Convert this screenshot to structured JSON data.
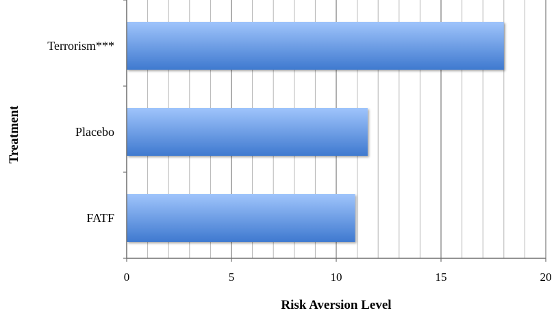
{
  "chart_data": {
    "type": "bar",
    "orientation": "horizontal",
    "categories": [
      "Terrorism***",
      "Placebo",
      "FATF"
    ],
    "values": [
      18,
      11.5,
      10.9
    ],
    "title": "",
    "xlabel": "Risk Aversion Level",
    "ylabel": "Treatment",
    "xlim": [
      0,
      20
    ],
    "x_ticks": [
      "0",
      "5",
      "10",
      "15",
      "20"
    ],
    "grid": true,
    "legend": "none",
    "bar_color": "#5b93df",
    "bar_color_light": "#9fc4fb",
    "bar_color_dark": "#3f79cf"
  }
}
